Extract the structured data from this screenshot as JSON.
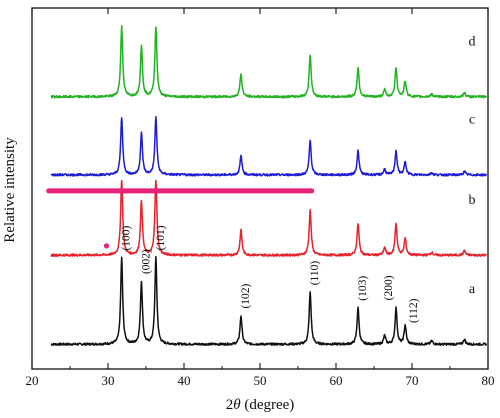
{
  "chart_data": {
    "type": "line",
    "xlabel_prefix": "2",
    "xlabel_theta": "θ",
    "xlabel_suffix": " (degree)",
    "ylabel": "Relative intensity",
    "xlim": [
      20,
      80
    ],
    "xticks": [
      20,
      30,
      40,
      50,
      60,
      70,
      80
    ],
    "grid": false,
    "peaks": [
      {
        "x": 31.8,
        "h": 1.0
      },
      {
        "x": 34.4,
        "h": 0.72
      },
      {
        "x": 36.3,
        "h": 1.0
      },
      {
        "x": 47.5,
        "h": 0.33
      },
      {
        "x": 56.6,
        "h": 0.6
      },
      {
        "x": 62.9,
        "h": 0.42
      },
      {
        "x": 66.4,
        "h": 0.1
      },
      {
        "x": 67.9,
        "h": 0.42
      },
      {
        "x": 69.1,
        "h": 0.22
      },
      {
        "x": 72.6,
        "h": 0.04
      },
      {
        "x": 76.9,
        "h": 0.06
      }
    ],
    "series": [
      {
        "label": "a",
        "color": "#111111",
        "base": 0.0,
        "strongest": 2.4
      },
      {
        "label": "b",
        "color": "#e8212b",
        "base": 1.62,
        "strongest": 2.1
      },
      {
        "label": "c",
        "color": "#1c1cd6",
        "base": 3.08,
        "strongest": 1.6
      },
      {
        "label": "d",
        "color": "#22b322",
        "base": 4.5,
        "strongest": 1.95
      }
    ],
    "peak_labels": [
      {
        "text": "(100)",
        "x": 31.8
      },
      {
        "text": "(002)",
        "x": 34.4
      },
      {
        "text": "(101)",
        "x": 36.3
      },
      {
        "text": "(102)",
        "x": 47.5
      },
      {
        "text": "(110)",
        "x": 56.6
      },
      {
        "text": "(103)",
        "x": 62.9
      },
      {
        "text": "(200)",
        "x": 67.9
      },
      {
        "text": "(112)",
        "x": 69.1
      }
    ],
    "annotation_bar": {
      "color": "#e8217a",
      "x_start": 22.2,
      "x_end": 56.8
    },
    "annotation_dot": {
      "color": "#e8217a",
      "x": 29.8
    }
  }
}
